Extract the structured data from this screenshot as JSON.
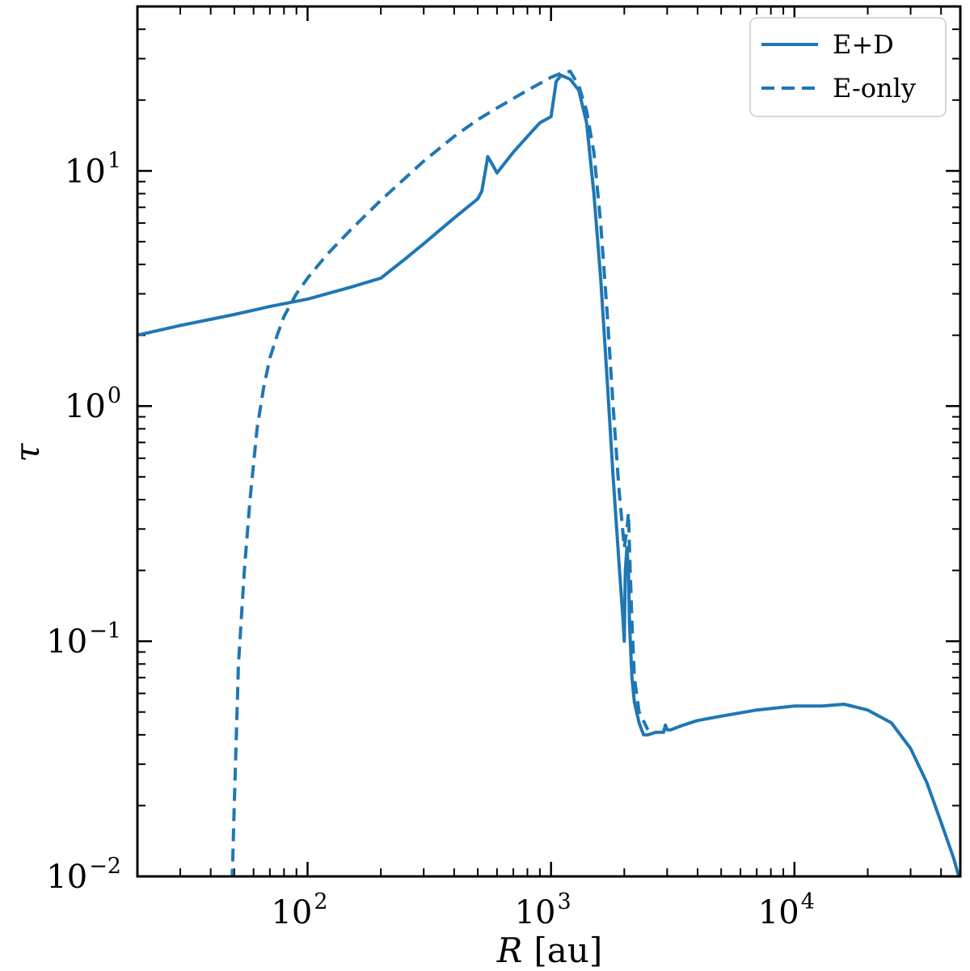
{
  "chart_data": {
    "type": "line",
    "xlabel_var": "R",
    "xlabel_unit": "[au]",
    "ylabel": "τ",
    "xscale": "log",
    "yscale": "log",
    "xlim": [
      20,
      48000
    ],
    "ylim": [
      0.01,
      50
    ],
    "x_ticks": [
      {
        "base": "10",
        "exp": "2"
      },
      {
        "base": "10",
        "exp": "3"
      },
      {
        "base": "10",
        "exp": "4"
      }
    ],
    "y_ticks": [
      {
        "base": "10",
        "exp": "−2"
      },
      {
        "base": "10",
        "exp": "−1"
      },
      {
        "base": "10",
        "exp": "0"
      },
      {
        "base": "10",
        "exp": "1"
      }
    ],
    "grid": false,
    "legend_position": "top-right",
    "color": "#1f77b4",
    "series": [
      {
        "name": "E+D",
        "style": "solid",
        "x": [
          20,
          30,
          50,
          70,
          100,
          150,
          200,
          250,
          300,
          400,
          500,
          520,
          550,
          570,
          600,
          700,
          800,
          900,
          1000,
          1050,
          1100,
          1150,
          1200,
          1300,
          1400,
          1500,
          1600,
          1700,
          1800,
          1900,
          1950,
          1980,
          2000,
          2020,
          2050,
          2080,
          2100,
          2150,
          2200,
          2300,
          2400,
          2500,
          2700,
          2900,
          2950,
          3000,
          3100,
          3500,
          4000,
          5000,
          7000,
          10000,
          13000,
          16000,
          20000,
          25000,
          30000,
          35000,
          40000,
          45000,
          48000
        ],
        "y": [
          2.0,
          2.2,
          2.45,
          2.65,
          2.85,
          3.2,
          3.5,
          4.2,
          4.9,
          6.3,
          7.6,
          8.2,
          11.5,
          10.8,
          9.8,
          12.0,
          14.0,
          16.0,
          17.0,
          24.0,
          25.5,
          25.0,
          24.5,
          22.0,
          16.0,
          8.0,
          3.5,
          1.3,
          0.5,
          0.22,
          0.15,
          0.12,
          0.1,
          0.2,
          0.25,
          0.2,
          0.12,
          0.07,
          0.055,
          0.045,
          0.04,
          0.04,
          0.041,
          0.041,
          0.044,
          0.042,
          0.042,
          0.044,
          0.046,
          0.048,
          0.051,
          0.053,
          0.053,
          0.054,
          0.051,
          0.045,
          0.035,
          0.025,
          0.017,
          0.012,
          0.0095
        ]
      },
      {
        "name": "E-only",
        "style": "dashed",
        "x": [
          49,
          50,
          52,
          55,
          58,
          62,
          66,
          70,
          75,
          80,
          85,
          90,
          100,
          120,
          150,
          200,
          300,
          400,
          500,
          600,
          800,
          1000,
          1100,
          1200,
          1300,
          1400,
          1500,
          1600,
          1700,
          1800,
          1900,
          2000,
          2050,
          2080,
          2100,
          2150,
          2200,
          2300,
          2500
        ],
        "y": [
          0.0095,
          0.02,
          0.08,
          0.2,
          0.4,
          0.8,
          1.2,
          1.6,
          2.0,
          2.4,
          2.7,
          3.0,
          3.5,
          4.4,
          5.6,
          7.5,
          11.0,
          14.0,
          16.5,
          18.5,
          22.0,
          25.0,
          26.0,
          26.5,
          23.0,
          18.0,
          12.0,
          6.0,
          2.5,
          1.0,
          0.45,
          0.25,
          0.3,
          0.35,
          0.25,
          0.12,
          0.07,
          0.05,
          0.042
        ]
      }
    ]
  }
}
